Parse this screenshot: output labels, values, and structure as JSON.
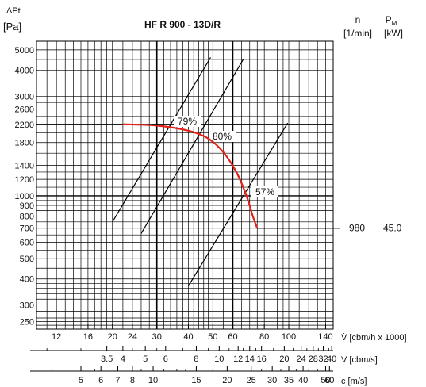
{
  "chart_data": {
    "type": "line",
    "title": "HF R 900 - 13D/R",
    "ylabel": "ΔPt",
    "ylabel_unit": "[Pa]",
    "y_scale": "log",
    "ylim": [
      230,
      5500
    ],
    "y_ticks": [
      250,
      300,
      400,
      500,
      600,
      700,
      800,
      900,
      1000,
      1200,
      1400,
      1800,
      2200,
      2600,
      3000,
      4000,
      5000
    ],
    "x_scale": "log",
    "xlim": [
      10,
      150
    ],
    "x_axes": [
      {
        "label": "V̇ [cbm/h x 1000]",
        "ticks": [
          "12",
          "16",
          "20",
          "24",
          "30",
          "40",
          "50",
          "60",
          "80",
          "100",
          "140"
        ]
      },
      {
        "label": "V [cbm/s]",
        "ticks": [
          "3.5",
          "4",
          "5",
          "6",
          "8",
          "10",
          "12",
          "14",
          "16",
          "20",
          "24",
          "28",
          "32",
          "40"
        ]
      },
      {
        "label": "c [m/s]",
        "ticks": [
          "5",
          "6",
          "7",
          "8",
          "10",
          "15",
          "20",
          "25",
          "30",
          "35",
          "40",
          "50",
          "60"
        ]
      }
    ],
    "right_header": {
      "n_label": "n",
      "n_unit": "[1/min]",
      "pm_label": "P",
      "pm_sub": "M",
      "pm_unit": "[kW]"
    },
    "operating_point": {
      "n": "980",
      "pm": "45.0",
      "pressure": 700
    },
    "fan_curve": {
      "color": "#e32119",
      "x": [
        22,
        30,
        40,
        48,
        55,
        62,
        68,
        72,
        75
      ],
      "y": [
        2200,
        2170,
        2050,
        1880,
        1620,
        1300,
        1000,
        800,
        700
      ]
    },
    "efficiency_lines": [
      {
        "label": "79%",
        "x": [
          20,
          49
        ],
        "y": [
          750,
          4600
        ]
      },
      {
        "label": "80%",
        "x": [
          26,
          66
        ],
        "y": [
          660,
          4500
        ]
      },
      {
        "label": "57%",
        "x": [
          40,
          99
        ],
        "y": [
          370,
          2230
        ]
      }
    ],
    "colors": {
      "curve": "#e32119",
      "grid": "#000000"
    }
  }
}
